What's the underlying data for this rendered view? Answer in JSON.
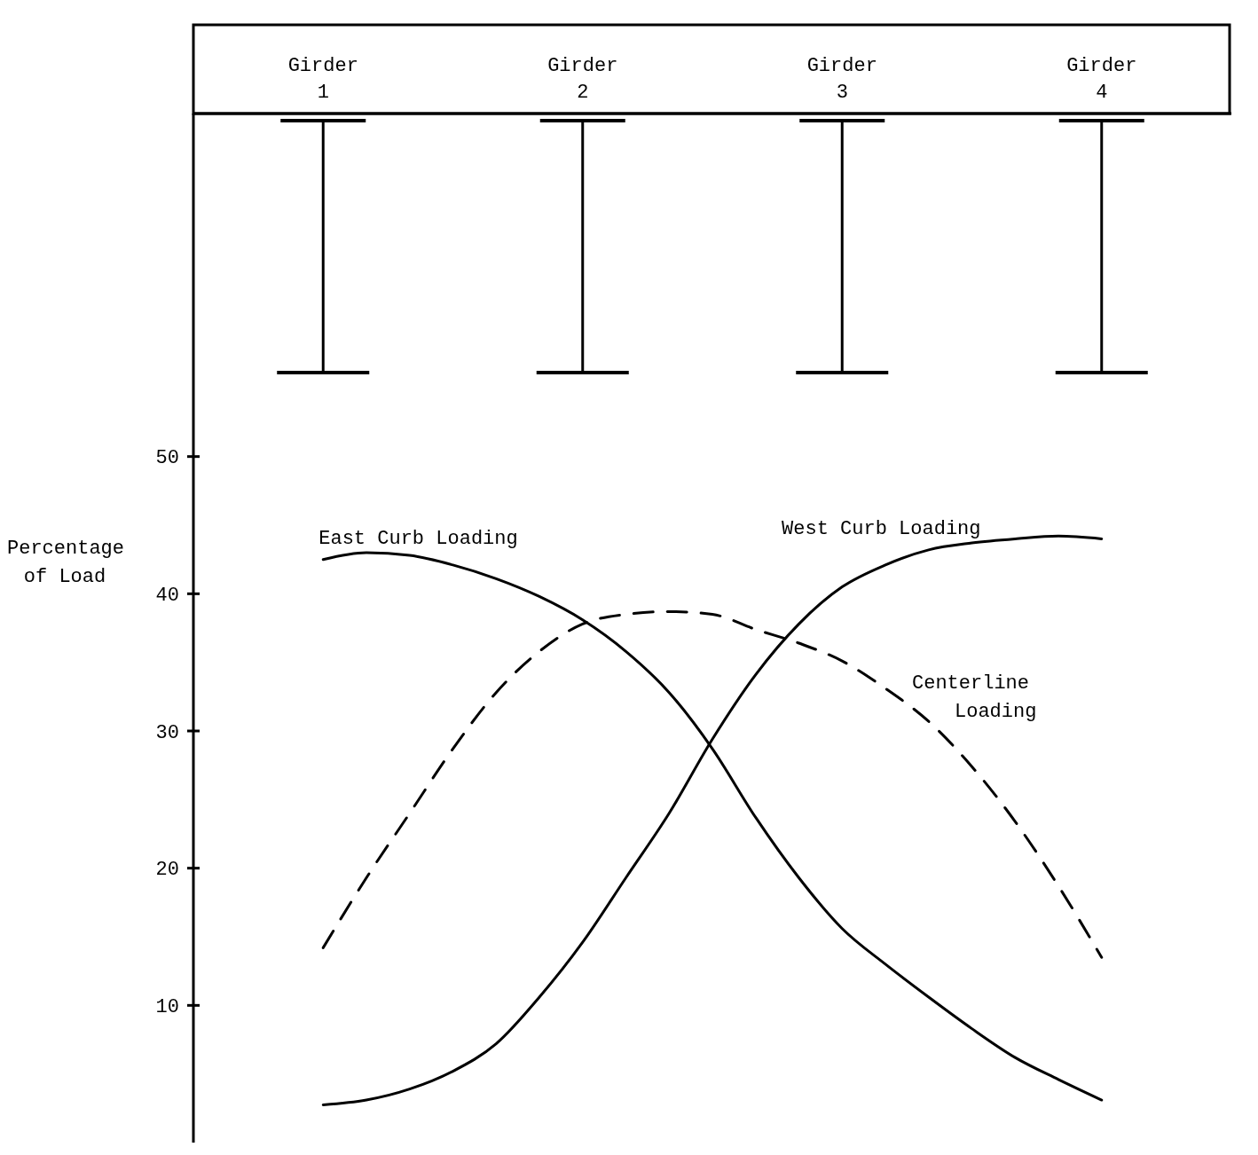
{
  "chart_data": {
    "type": "line",
    "ylabel": "Percentage of Load",
    "categories": [
      "Girder 1",
      null,
      null,
      null,
      null,
      null,
      "Girder 2",
      null,
      null,
      null,
      null,
      null,
      "Girder 3",
      null,
      null,
      null,
      null,
      null,
      "Girder 4"
    ],
    "ylim": [
      0,
      75
    ],
    "yticks": [
      10,
      20,
      30,
      40,
      50
    ],
    "series": [
      {
        "name": "East Curb Loading",
        "color": "#000000",
        "line_style": "solid",
        "values": [
          42.5,
          43.0,
          42.8,
          42.1,
          41.1,
          39.8,
          38.1,
          35.8,
          32.8,
          28.7,
          23.7,
          19.3,
          15.6,
          13.0,
          10.6,
          8.3,
          6.2,
          4.6,
          3.1
        ]
      },
      {
        "name": "West Curb Loading",
        "color": "#000000",
        "line_style": "solid",
        "values": [
          2.75,
          3.1,
          3.9,
          5.2,
          7.2,
          10.6,
          14.6,
          19.3,
          24.0,
          29.4,
          34.1,
          37.8,
          40.5,
          42.1,
          43.2,
          43.7,
          44.0,
          44.2,
          44.0
        ]
      },
      {
        "name": "Centerline Loading",
        "color": "#000000",
        "line_style": "dashed",
        "values": [
          14.2,
          19.3,
          24.0,
          28.7,
          32.8,
          35.8,
          37.8,
          38.5,
          38.7,
          38.5,
          37.4,
          36.4,
          35.1,
          33.1,
          30.7,
          27.4,
          23.4,
          18.7,
          13.5
        ]
      }
    ],
    "grid": false,
    "legend": false,
    "marker": "none"
  }
}
